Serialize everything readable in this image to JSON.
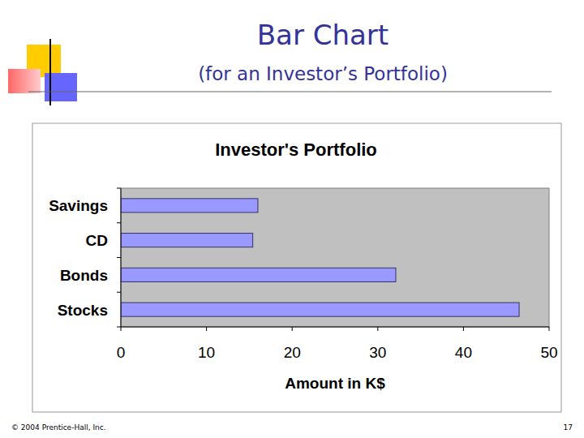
{
  "slide": {
    "title": "Bar Chart",
    "subtitle": "(for an Investor’s Portfolio)",
    "footer": "© 2004 Prentice-Hall, Inc.",
    "page": 17
  },
  "chart_data": {
    "type": "bar",
    "title": "Investor's Portfolio",
    "orientation": "horizontal",
    "categories": [
      "Savings",
      "CD",
      "Bonds",
      "Stocks"
    ],
    "values": [
      16,
      15.4,
      32.1,
      46.5
    ],
    "color": "#9999ff",
    "x_label": "Amount in K$",
    "xlim": [
      0,
      50
    ],
    "xticks": [
      0,
      10,
      20,
      30,
      40,
      50
    ],
    "grid": false
  }
}
